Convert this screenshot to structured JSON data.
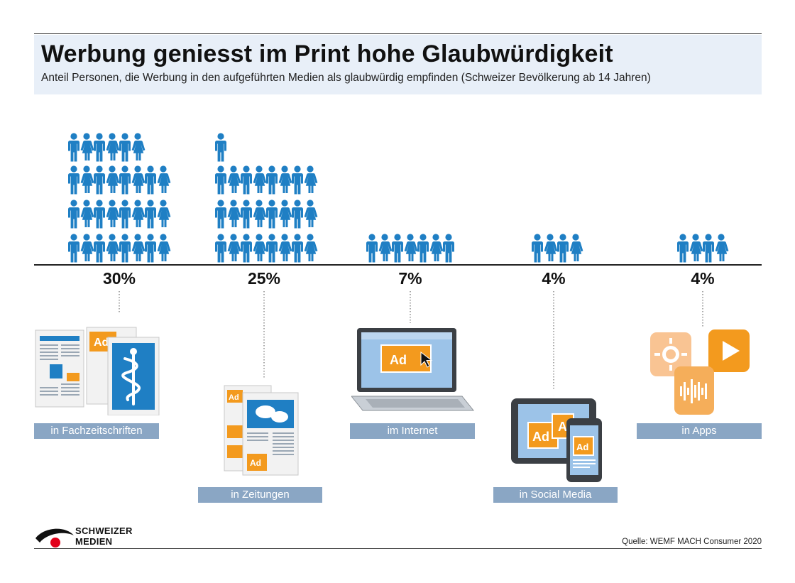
{
  "header": {
    "title": "Werbung geniesst im Print hohe Glaubwürdigkeit",
    "subtitle": "Anteil Personen, die Werbung in den aufgeführten Medien als glaubwürdig empfinden (Schweizer Bevölkerung ab 14 Jahren)"
  },
  "chart_data": {
    "type": "bar",
    "categories": [
      "in Fachzeitschriften",
      "in Zeitungen",
      "im Internet",
      "in Social Media",
      "in Apps"
    ],
    "values": [
      30,
      25,
      7,
      4,
      4
    ],
    "value_labels": [
      "30%",
      "25%",
      "7%",
      "4%",
      "4%"
    ],
    "unit": "%",
    "marker": "person-icon",
    "title": "Werbung geniesst im Print hohe Glaubwürdigkeit",
    "xlabel": "",
    "ylabel": ""
  },
  "colors": {
    "person": "#1f7fc4",
    "label_bg": "#8aa6c4",
    "header_bg": "#e8eff8",
    "ad_orange": "#f39a1e",
    "logo_red": "#e2001a"
  },
  "illustrations": {
    "fachzeitschriften": {
      "ad_text": "Ad",
      "icon": "caduceus-icon"
    },
    "zeitungen": {
      "ad_text": "Ad",
      "icon": "speech-bubbles-icon"
    },
    "internet": {
      "ad_text": "Ad",
      "icon": "laptop-icon"
    },
    "social_media": {
      "ad_text": "Ad",
      "ad_text_2": "A",
      "icon": "tablet-phone-icon"
    },
    "apps": {
      "icon": "app-icons"
    }
  },
  "logo": {
    "line1": "SCHWEIZER",
    "line2": "MEDIEN"
  },
  "source": "Quelle: WEMF MACH Consumer 2020"
}
